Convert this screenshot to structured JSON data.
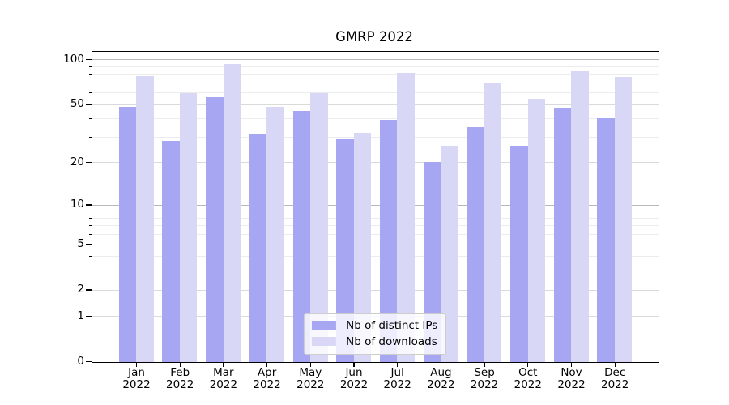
{
  "title": "GMRP 2022",
  "chart_data": {
    "type": "bar",
    "title": "GMRP 2022",
    "x": {
      "months": [
        "Jan",
        "Feb",
        "Mar",
        "Apr",
        "May",
        "Jun",
        "Jul",
        "Aug",
        "Sep",
        "Oct",
        "Nov",
        "Dec"
      ],
      "year": "2022"
    },
    "series": [
      {
        "name": "Nb of distinct IPs",
        "color": "#a6a6f2",
        "values": [
          48,
          28,
          56,
          31,
          45,
          29,
          39,
          20,
          35,
          26,
          47,
          40
        ]
      },
      {
        "name": "Nb of downloads",
        "color": "#d8d8f6",
        "values": [
          77,
          59,
          93,
          48,
          59,
          32,
          81,
          26,
          70,
          54,
          83,
          76
        ]
      }
    ],
    "y_scale": "log1p",
    "ylim": [
      0,
      113
    ],
    "y_ticks": [
      0,
      1,
      2,
      5,
      10,
      20,
      50,
      100
    ],
    "y_tick_labels": [
      "0",
      "1",
      "2",
      "5",
      "10",
      "20",
      "50",
      "100"
    ],
    "y_minor_ticks": [
      3,
      4,
      6,
      7,
      8,
      9,
      30,
      40,
      60,
      70,
      80,
      90
    ],
    "grid": true,
    "legend": {
      "position": "lower center",
      "items": [
        "Nb of distinct IPs",
        "Nb of downloads"
      ]
    }
  }
}
